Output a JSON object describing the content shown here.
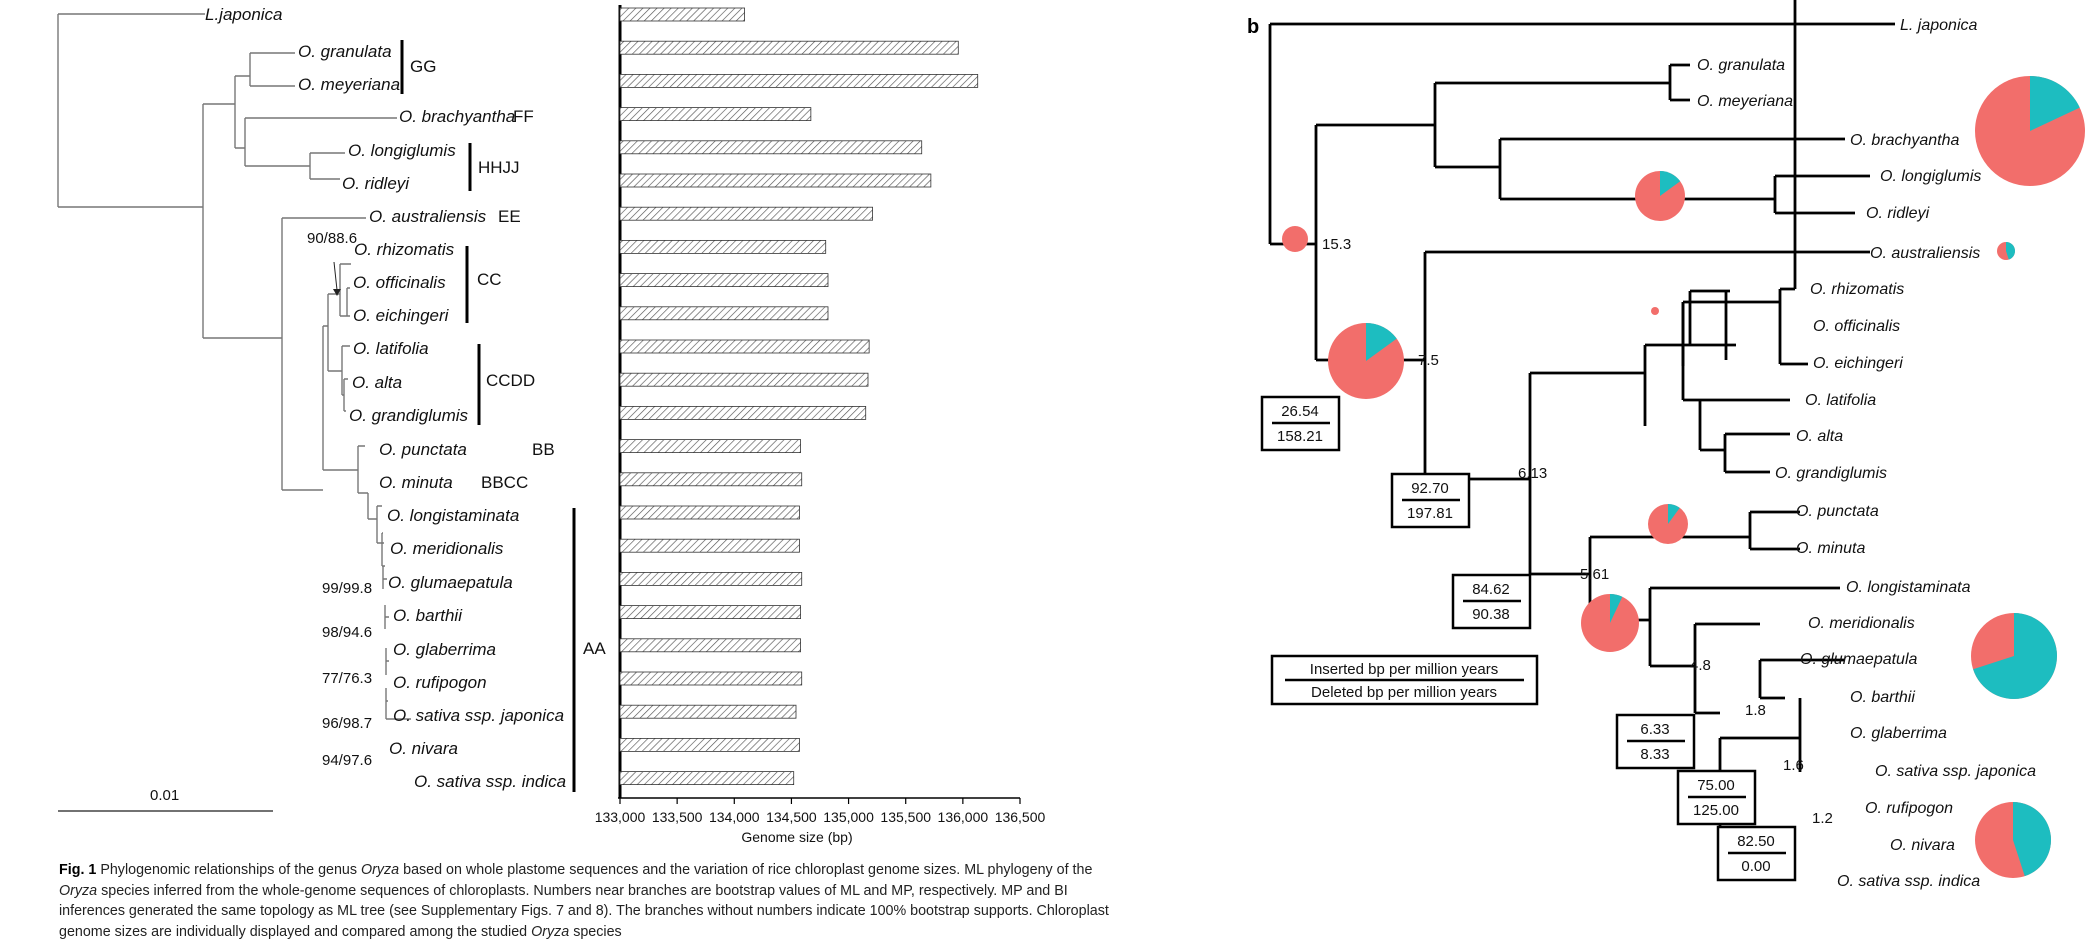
{
  "panel_b_label": "b",
  "tree_a": {
    "outgroup": "L.japonica",
    "taxa": [
      "O. granulata",
      "O. meyeriana",
      "O. brachyantha",
      "O. longiglumis",
      "O. ridleyi",
      "O. australiensis",
      "O. rhizomatis",
      "O. officinalis",
      "O. eichingeri",
      "O. latifolia",
      "O. alta",
      "O. grandiglumis",
      "O. punctata",
      "O. minuta",
      "O. longistaminata",
      "O. meridionalis",
      "O. glumaepatula",
      "O. barthii",
      "O. glaberrima",
      "O. rufipogon",
      "O. sativa ssp. japonica",
      "O. nivara",
      "O. sativa ssp. indica"
    ],
    "genomes": {
      "GG": "GG",
      "FF": "FF",
      "HHJJ": "HHJJ",
      "EE": "EE",
      "CC": "CC",
      "CCDD": "CCDD",
      "BB": "BB",
      "BBCC": "BBCC",
      "AA": "AA"
    },
    "bootstrap": [
      "90/88.6",
      "99/99.8",
      "98/94.6",
      "77/76.3",
      "96/98.7",
      "94/97.6"
    ],
    "scale_label": "0.01"
  },
  "chart_data": {
    "type": "bar",
    "orientation": "horizontal",
    "categories": [
      "L. japonica",
      "O. granulata",
      "O. meyeriana",
      "O. brachyantha",
      "O. longiglumis",
      "O. ridleyi",
      "O. australiensis",
      "O. rhizomatis",
      "O. officinalis",
      "O. eichingeri",
      "O. latifolia",
      "O. alta",
      "O. grandiglumis",
      "O. punctata",
      "O. minuta",
      "O. longistaminata",
      "O. meridionalis",
      "O. glumaepatula",
      "O. barthii",
      "O. glaberrima",
      "O. rufipogon",
      "O. sativa ssp. japonica",
      "O. nivara",
      "O. sativa ssp. indica"
    ],
    "values": [
      134090,
      135960,
      136130,
      134670,
      135640,
      135720,
      135210,
      134800,
      134820,
      134820,
      135180,
      135170,
      135150,
      134580,
      134590,
      134570,
      134570,
      134590,
      134580,
      134580,
      134590,
      134540,
      134570,
      134520
    ],
    "xlabel": "Genome size (bp)",
    "xlim": [
      133000,
      136500
    ],
    "ticks": [
      "133,000",
      "133,500",
      "134,000",
      "134,500",
      "135,000",
      "135,500",
      "136,000",
      "136,500"
    ]
  },
  "tree_b": {
    "outgroup": "L. japonica",
    "taxa": [
      "O. granulata",
      "O. meyeriana",
      "O. brachyantha",
      "O. longiglumis",
      "O. ridleyi",
      "O. australiensis",
      "O. rhizomatis",
      "O. officinalis",
      "O. eichingeri",
      "O. latifolia",
      "O. alta",
      "O. grandiglumis",
      "O. punctata",
      "O. minuta",
      "O. longistaminata",
      "O. meridionalis",
      "O. glumaepatula",
      "O. barthii",
      "O. glaberrima",
      "O. sativa ssp. japonica",
      "O. rufipogon",
      "O. nivara",
      "O. sativa ssp. indica"
    ],
    "node_ages": [
      "15.3",
      "7.5",
      "6.13",
      "5.61",
      "4.8",
      "1.8",
      "1.6",
      "1.2"
    ],
    "rate_boxes": [
      {
        "inserted": "26.54",
        "deleted": "158.21"
      },
      {
        "inserted": "92.70",
        "deleted": "197.81"
      },
      {
        "inserted": "84.62",
        "deleted": "90.38"
      },
      {
        "inserted": "6.33",
        "deleted": "8.33"
      },
      {
        "inserted": "75.00",
        "deleted": "125.00"
      },
      {
        "inserted": "82.50",
        "deleted": "0.00"
      }
    ],
    "legend_top": "Inserted bp per million years",
    "legend_bottom": "Deleted bp per million years",
    "pies": [
      {
        "node": "15.3",
        "deleted_fraction": 1.0
      },
      {
        "node": "7.5",
        "deleted_fraction": 0.85
      },
      {
        "node": "brachyantha",
        "deleted_fraction": 0.82
      },
      {
        "node": "longiglumis-ridleyi",
        "deleted_fraction": 0.85
      },
      {
        "node": "australiensis",
        "deleted_fraction": 0.55
      },
      {
        "node": "CC-CCDD",
        "deleted_fraction": 1.0
      },
      {
        "node": "punctata-minuta",
        "deleted_fraction": 0.9
      },
      {
        "node": "5.61",
        "deleted_fraction": 0.93
      },
      {
        "node": "glumaepatula",
        "deleted_fraction": 0.3
      },
      {
        "node": "nivara-indica",
        "deleted_fraction": 0.55
      }
    ],
    "colors": {
      "deleted": "#f26e6b",
      "inserted": "#1dbdc0"
    }
  },
  "caption": {
    "label": "Fig. 1",
    "p1": " Phylogenomic relationships of the genus ",
    "i1": "Oryza",
    "p2": " based on whole plastome sequences and the variation of rice chloroplast genome sizes. ML phylogeny of the ",
    "i2": "Oryza",
    "p3": " species inferred from the whole-genome sequences of chloroplasts. Numbers near branches are bootstrap values of ML and MP, respectively. MP and BI inferences generated the same topology as ML tree (see Supplementary Figs. 7 and 8). The branches without numbers indicate 100% bootstrap supports. Chloroplast genome sizes are individually displayed and compared among the studied ",
    "i3": "Oryza",
    "p4": " species"
  }
}
